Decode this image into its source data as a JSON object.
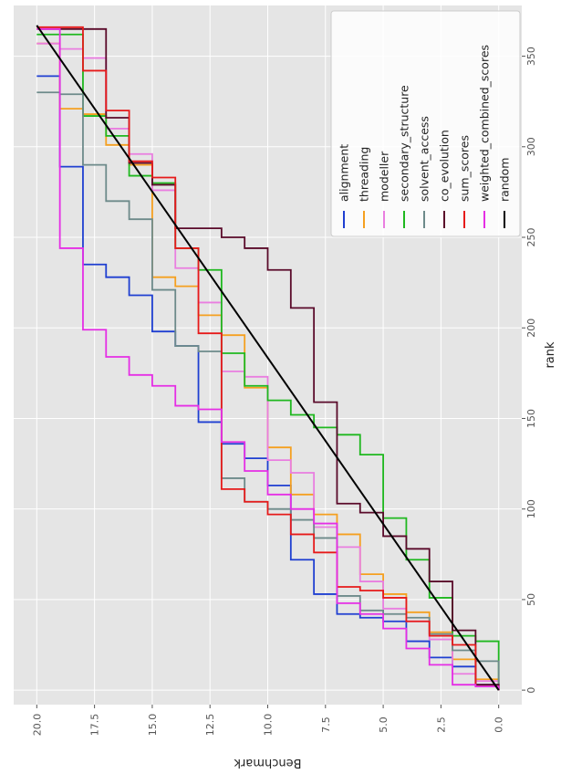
{
  "chart_data": {
    "type": "line",
    "orientation": "rotated-90-clockwise",
    "title": "",
    "xlabel": "rank",
    "ylabel": "Benchmark",
    "xlim": [
      -8,
      378
    ],
    "ylim": [
      0,
      20
    ],
    "xticks": [
      0,
      50,
      100,
      150,
      200,
      250,
      300,
      350
    ],
    "xtick_labels": [
      "0",
      "50",
      "100",
      "150",
      "200",
      "250",
      "300",
      "350"
    ],
    "yticks": [
      0,
      2.5,
      5,
      7.5,
      10,
      12.5,
      15,
      17.5,
      20
    ],
    "ytick_labels": [
      "0.0",
      "2.5",
      "5.0",
      "7.5",
      "10.0",
      "12.5",
      "15.0",
      "17.5",
      "20.0"
    ],
    "grid": true,
    "legend_position": "upper-left",
    "series": [
      {
        "name": "alignment",
        "color": "#1f3fd1",
        "points": [
          [
            0,
            0
          ],
          [
            3,
            1
          ],
          [
            13,
            2
          ],
          [
            18,
            3
          ],
          [
            27,
            4
          ],
          [
            38,
            5
          ],
          [
            40,
            6
          ],
          [
            42,
            7
          ],
          [
            53,
            8
          ],
          [
            72,
            9
          ],
          [
            113,
            10
          ],
          [
            128,
            11
          ],
          [
            136,
            12
          ],
          [
            148,
            13
          ],
          [
            190,
            14
          ],
          [
            198,
            15
          ],
          [
            218,
            16
          ],
          [
            228,
            17
          ],
          [
            235,
            18
          ],
          [
            289,
            19
          ],
          [
            339,
            20
          ]
        ]
      },
      {
        "name": "threading",
        "color": "#f5a020",
        "points": [
          [
            0,
            0
          ],
          [
            6,
            1
          ],
          [
            17,
            2
          ],
          [
            32,
            3
          ],
          [
            43,
            4
          ],
          [
            53,
            5
          ],
          [
            64,
            6
          ],
          [
            86,
            7
          ],
          [
            97,
            8
          ],
          [
            108,
            9
          ],
          [
            134,
            10
          ],
          [
            167,
            11
          ],
          [
            196,
            12
          ],
          [
            207,
            13
          ],
          [
            223,
            14
          ],
          [
            228,
            15
          ],
          [
            290,
            16
          ],
          [
            301,
            17
          ],
          [
            318,
            18
          ],
          [
            321,
            19
          ],
          [
            357,
            20
          ]
        ]
      },
      {
        "name": "modeller",
        "color": "#e97ee0",
        "points": [
          [
            0,
            0
          ],
          [
            5,
            1
          ],
          [
            9,
            2
          ],
          [
            28,
            3
          ],
          [
            38,
            4
          ],
          [
            45,
            5
          ],
          [
            60,
            6
          ],
          [
            79,
            7
          ],
          [
            90,
            8
          ],
          [
            120,
            9
          ],
          [
            127,
            10
          ],
          [
            173,
            11
          ],
          [
            176,
            12
          ],
          [
            214,
            13
          ],
          [
            233,
            14
          ],
          [
            276,
            15
          ],
          [
            296,
            16
          ],
          [
            310,
            17
          ],
          [
            349,
            18
          ],
          [
            354,
            19
          ],
          [
            357,
            20
          ]
        ]
      },
      {
        "name": "secondary_structure",
        "color": "#1fb81f",
        "points": [
          [
            0,
            0
          ],
          [
            27,
            1
          ],
          [
            30,
            2
          ],
          [
            51,
            3
          ],
          [
            72,
            4
          ],
          [
            95,
            5
          ],
          [
            130,
            6
          ],
          [
            141,
            7
          ],
          [
            145,
            8
          ],
          [
            152,
            9
          ],
          [
            160,
            10
          ],
          [
            168,
            11
          ],
          [
            186,
            12
          ],
          [
            232,
            13
          ],
          [
            244,
            14
          ],
          [
            280,
            15
          ],
          [
            284,
            16
          ],
          [
            306,
            17
          ],
          [
            317,
            18
          ],
          [
            362,
            19
          ],
          [
            362,
            20
          ]
        ]
      },
      {
        "name": "solvent_access",
        "color": "#6d8a8a",
        "points": [
          [
            0,
            0
          ],
          [
            16,
            1
          ],
          [
            22,
            2
          ],
          [
            31,
            3
          ],
          [
            40,
            4
          ],
          [
            42,
            5
          ],
          [
            44,
            6
          ],
          [
            52,
            7
          ],
          [
            84,
            8
          ],
          [
            94,
            9
          ],
          [
            100,
            10
          ],
          [
            104,
            11
          ],
          [
            117,
            12
          ],
          [
            187,
            13
          ],
          [
            190,
            14
          ],
          [
            221,
            15
          ],
          [
            260,
            16
          ],
          [
            270,
            17
          ],
          [
            290,
            18
          ],
          [
            329,
            19
          ],
          [
            330,
            20
          ]
        ]
      },
      {
        "name": "co_evolution",
        "color": "#5a0a2a",
        "points": [
          [
            0,
            0
          ],
          [
            3,
            1
          ],
          [
            33,
            2
          ],
          [
            60,
            3
          ],
          [
            78,
            4
          ],
          [
            85,
            5
          ],
          [
            98,
            6
          ],
          [
            103,
            7
          ],
          [
            159,
            8
          ],
          [
            211,
            9
          ],
          [
            232,
            10
          ],
          [
            244,
            11
          ],
          [
            250,
            12
          ],
          [
            255,
            13
          ],
          [
            255,
            14
          ],
          [
            279,
            15
          ],
          [
            291,
            16
          ],
          [
            316,
            17
          ],
          [
            365,
            18
          ],
          [
            365,
            19
          ],
          [
            365,
            20
          ]
        ]
      },
      {
        "name": "sum_scores",
        "color": "#e61a1a",
        "points": [
          [
            0,
            0
          ],
          [
            2,
            1
          ],
          [
            25,
            2
          ],
          [
            30,
            3
          ],
          [
            38,
            4
          ],
          [
            51,
            5
          ],
          [
            55,
            6
          ],
          [
            57,
            7
          ],
          [
            76,
            8
          ],
          [
            86,
            9
          ],
          [
            97,
            10
          ],
          [
            104,
            11
          ],
          [
            111,
            12
          ],
          [
            197,
            13
          ],
          [
            244,
            14
          ],
          [
            283,
            15
          ],
          [
            292,
            16
          ],
          [
            320,
            17
          ],
          [
            342,
            18
          ],
          [
            366,
            19
          ],
          [
            366,
            20
          ]
        ]
      },
      {
        "name": "weighted_combined_scores",
        "color": "#e52ee5",
        "points": [
          [
            0,
            0
          ],
          [
            2,
            1
          ],
          [
            3,
            2
          ],
          [
            14,
            3
          ],
          [
            23,
            4
          ],
          [
            34,
            5
          ],
          [
            42,
            6
          ],
          [
            48,
            7
          ],
          [
            92,
            8
          ],
          [
            100,
            9
          ],
          [
            108,
            10
          ],
          [
            121,
            11
          ],
          [
            137,
            12
          ],
          [
            155,
            13
          ],
          [
            157,
            14
          ],
          [
            168,
            15
          ],
          [
            174,
            16
          ],
          [
            184,
            17
          ],
          [
            199,
            18
          ],
          [
            244,
            19
          ],
          [
            365,
            20
          ]
        ]
      },
      {
        "name": "random",
        "color": "#000000",
        "points": [
          [
            0,
            0
          ],
          [
            367,
            20
          ]
        ]
      }
    ]
  }
}
